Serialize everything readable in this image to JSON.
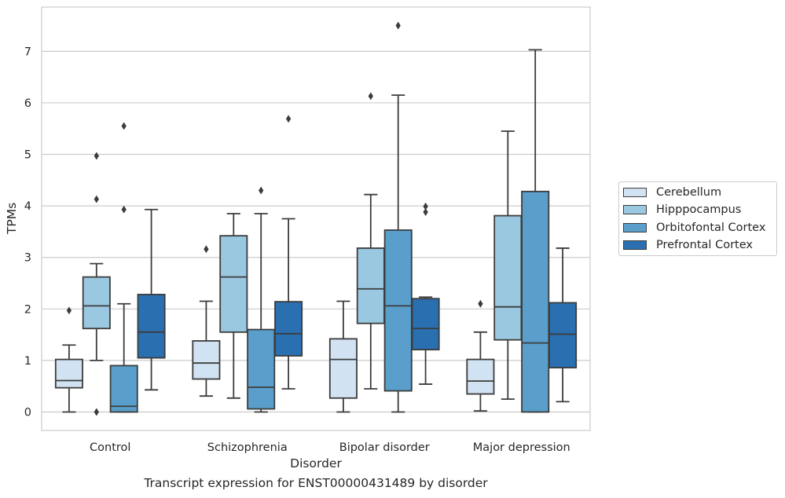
{
  "caption": "Transcript expression for ENST00000431489 by disorder",
  "chart_data": {
    "type": "box",
    "xlabel": "Disorder",
    "ylabel": "TPMs",
    "ylim": [
      -0.36,
      7.9
    ],
    "yticks": [
      0,
      1,
      2,
      3,
      4,
      5,
      6,
      7
    ],
    "grid": true,
    "legend_position": "right",
    "categories": [
      "Control",
      "Schizophrenia",
      "Bipolar disorder",
      "Major depression"
    ],
    "series": [
      {
        "name": "Cerebellum",
        "color": "#d1e2f2",
        "boxes": [
          {
            "whislo": 0.0,
            "q1": 0.47,
            "med": 0.61,
            "q3": 1.02,
            "whishi": 1.3,
            "fliers": [
              1.97
            ]
          },
          {
            "whislo": 0.31,
            "q1": 0.64,
            "med": 0.95,
            "q3": 1.38,
            "whishi": 2.15,
            "fliers": [
              3.16
            ]
          },
          {
            "whislo": 0.0,
            "q1": 0.27,
            "med": 1.02,
            "q3": 1.42,
            "whishi": 2.15,
            "fliers": []
          },
          {
            "whislo": 0.02,
            "q1": 0.35,
            "med": 0.6,
            "q3": 1.02,
            "whishi": 1.55,
            "fliers": [
              2.1
            ]
          }
        ]
      },
      {
        "name": "Hipppocampus",
        "color": "#9ac8e0",
        "boxes": [
          {
            "whislo": 1.0,
            "q1": 1.62,
            "med": 2.06,
            "q3": 2.62,
            "whishi": 2.88,
            "fliers": [
              4.97,
              4.13,
              0.0
            ]
          },
          {
            "whislo": 0.27,
            "q1": 1.55,
            "med": 2.62,
            "q3": 3.42,
            "whishi": 3.85,
            "fliers": []
          },
          {
            "whislo": 0.45,
            "q1": 1.72,
            "med": 2.39,
            "q3": 3.18,
            "whishi": 4.22,
            "fliers": [
              6.13
            ]
          },
          {
            "whislo": 0.25,
            "q1": 1.4,
            "med": 2.04,
            "q3": 3.81,
            "whishi": 5.45,
            "fliers": []
          }
        ]
      },
      {
        "name": "Orbitofontal Cortex",
        "color": "#5a9fcb",
        "boxes": [
          {
            "whislo": 0.0,
            "q1": 0.0,
            "med": 0.11,
            "q3": 0.9,
            "whishi": 2.1,
            "fliers": [
              5.55,
              3.93
            ]
          },
          {
            "whislo": 0.0,
            "q1": 0.06,
            "med": 0.48,
            "q3": 1.6,
            "whishi": 3.85,
            "fliers": [
              4.3
            ]
          },
          {
            "whislo": 0.0,
            "q1": 0.41,
            "med": 2.06,
            "q3": 3.53,
            "whishi": 6.15,
            "fliers": [
              7.5
            ]
          },
          {
            "whislo": 0.0,
            "q1": 0.0,
            "med": 1.34,
            "q3": 4.28,
            "whishi": 7.03,
            "fliers": []
          }
        ]
      },
      {
        "name": "Prefrontal Cortex",
        "color": "#2a6fb0",
        "boxes": [
          {
            "whislo": 0.43,
            "q1": 1.05,
            "med": 1.55,
            "q3": 2.28,
            "whishi": 3.93,
            "fliers": []
          },
          {
            "whislo": 0.45,
            "q1": 1.09,
            "med": 1.52,
            "q3": 2.14,
            "whishi": 3.75,
            "fliers": [
              5.69
            ]
          },
          {
            "whislo": 0.54,
            "q1": 1.21,
            "med": 1.62,
            "q3": 2.2,
            "whishi": 2.23,
            "fliers": [
              3.99,
              3.88
            ]
          },
          {
            "whislo": 0.2,
            "q1": 0.86,
            "med": 1.51,
            "q3": 2.12,
            "whishi": 3.18,
            "fliers": []
          }
        ]
      }
    ]
  }
}
